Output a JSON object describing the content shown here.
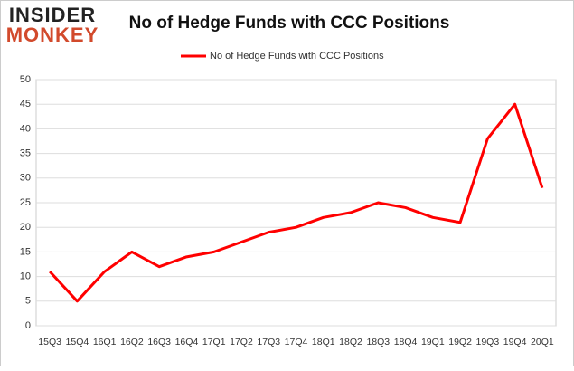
{
  "logo": {
    "top": "INSIDER",
    "bottom": "MONKEY"
  },
  "chart_data": {
    "type": "line",
    "title": "No of Hedge Funds with CCC Positions",
    "categories": [
      "15Q3",
      "15Q4",
      "16Q1",
      "16Q2",
      "16Q3",
      "16Q4",
      "17Q1",
      "17Q2",
      "17Q3",
      "17Q4",
      "18Q1",
      "18Q2",
      "18Q3",
      "18Q4",
      "19Q1",
      "19Q2",
      "19Q3",
      "19Q4",
      "20Q1"
    ],
    "series": [
      {
        "name": "No of Hedge Funds with CCC Positions",
        "color": "#ff0000",
        "values": [
          11,
          5,
          11,
          15,
          12,
          14,
          15,
          17,
          19,
          20,
          22,
          23,
          25,
          24,
          22,
          21,
          38,
          45,
          28
        ]
      }
    ],
    "ylim": [
      0,
      50
    ],
    "yticks": [
      0,
      5,
      10,
      15,
      20,
      25,
      30,
      35,
      40,
      45,
      50
    ],
    "grid": true,
    "legend": "top"
  }
}
